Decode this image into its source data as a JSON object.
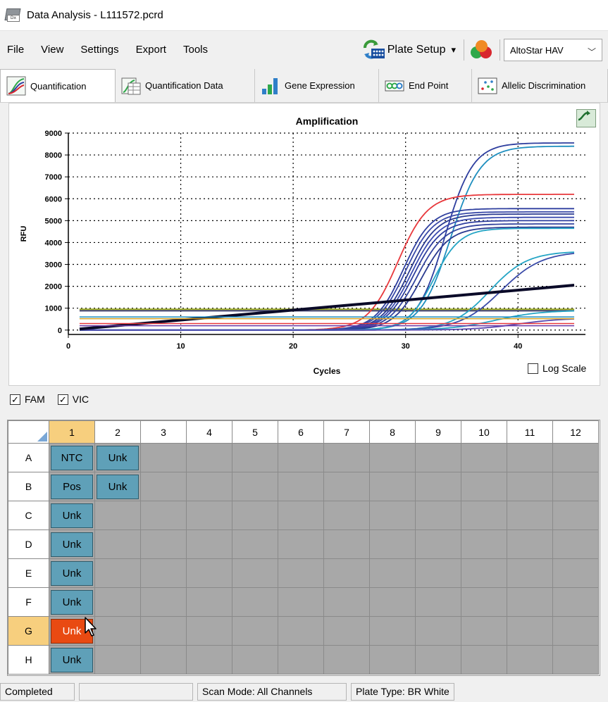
{
  "window": {
    "title": "Data Analysis - L111572.pcrd",
    "app_icon_badge": "Dx"
  },
  "menu": {
    "items": [
      "File",
      "View",
      "Settings",
      "Export",
      "Tools"
    ]
  },
  "toolbar": {
    "plate_setup_label": "Plate Setup",
    "plate_setup_arrow": "▾",
    "assay_select_value": "AltoStar HAV",
    "assay_select_chevron": "﹀"
  },
  "tabs": [
    {
      "label": "Quantification",
      "icon": "amplification-curve-icon",
      "active": true
    },
    {
      "label": "Quantification Data",
      "icon": "quantification-table-icon",
      "active": false
    },
    {
      "label": "Gene Expression",
      "icon": "bar-chart-icon",
      "active": false
    },
    {
      "label": "End Point",
      "icon": "end-point-icon",
      "active": false
    },
    {
      "label": "Allelic Discrimination",
      "icon": "scatter-plot-icon",
      "active": false
    }
  ],
  "chart_data": {
    "type": "line",
    "title": "Amplification",
    "xlabel": "Cycles",
    "ylabel": "RFU",
    "xlim": [
      0,
      46
    ],
    "ylim": [
      -200,
      9000
    ],
    "x_ticks": [
      0,
      10,
      20,
      30,
      40
    ],
    "y_ticks": [
      0,
      1000,
      2000,
      3000,
      4000,
      5000,
      6000,
      7000,
      8000,
      9000
    ],
    "grid": true,
    "log_scale": false,
    "threshold_lines": [
      {
        "value": 950,
        "color": "#9aa81e"
      },
      {
        "value": 880,
        "color": "#3b3b6b"
      }
    ],
    "series": [
      {
        "type": "sigmoid",
        "color": "#1f8fbf",
        "base": 0,
        "plateau": 8400,
        "midpoint": 34.0,
        "slope": 0.75
      },
      {
        "type": "sigmoid",
        "color": "#2f3f9f",
        "base": 0,
        "plateau": 8550,
        "midpoint": 33.5,
        "slope": 0.8
      },
      {
        "type": "sigmoid",
        "color": "#e8383c",
        "base": 0,
        "plateau": 6200,
        "midpoint": 29.3,
        "slope": 0.75
      },
      {
        "type": "sigmoid",
        "color": "#2f3f9f",
        "base": 0,
        "plateau": 5550,
        "midpoint": 29.8,
        "slope": 0.8
      },
      {
        "type": "sigmoid",
        "color": "#3a4aa8",
        "base": 0,
        "plateau": 5400,
        "midpoint": 30.0,
        "slope": 0.8
      },
      {
        "type": "sigmoid",
        "color": "#2a3a90",
        "base": 0,
        "plateau": 5300,
        "midpoint": 30.3,
        "slope": 0.8
      },
      {
        "type": "sigmoid",
        "color": "#3c4cb0",
        "base": 0,
        "plateau": 5150,
        "midpoint": 30.5,
        "slope": 0.8
      },
      {
        "type": "sigmoid",
        "color": "#2f3f9f",
        "base": 0,
        "plateau": 5000,
        "midpoint": 30.7,
        "slope": 0.8
      },
      {
        "type": "sigmoid",
        "color": "#34449e",
        "base": 0,
        "plateau": 4850,
        "midpoint": 31.0,
        "slope": 0.8
      },
      {
        "type": "sigmoid",
        "color": "#2a3a90",
        "base": 0,
        "plateau": 4700,
        "midpoint": 31.4,
        "slope": 0.8
      },
      {
        "type": "sigmoid",
        "color": "#25a5c5",
        "base": 0,
        "plateau": 4650,
        "midpoint": 32.5,
        "slope": 0.85
      },
      {
        "type": "sigmoid",
        "color": "#25a5c5",
        "base": 0,
        "plateau": 3600,
        "midpoint": 37.5,
        "slope": 0.6
      },
      {
        "type": "sigmoid",
        "color": "#3a4aa8",
        "base": 0,
        "plateau": 3600,
        "midpoint": 38.5,
        "slope": 0.55
      },
      {
        "type": "sigmoid",
        "color": "#25a5c5",
        "base": 0,
        "plateau": 900,
        "midpoint": 38.0,
        "slope": 0.5
      },
      {
        "type": "sigmoid",
        "color": "#5a4ab0",
        "base": 0,
        "plateau": 550,
        "midpoint": 40.0,
        "slope": 0.5
      },
      {
        "type": "linear",
        "color": "#0a0a28",
        "start": [
          1,
          50
        ],
        "end": [
          45,
          2050
        ],
        "width": 4
      },
      {
        "type": "linear",
        "color": "#e8383c",
        "start": [
          1,
          300
        ],
        "end": [
          45,
          300
        ],
        "width": 1.5
      },
      {
        "type": "linear",
        "color": "#d4a020",
        "start": [
          1,
          520
        ],
        "end": [
          45,
          520
        ],
        "width": 1.5
      },
      {
        "type": "linear",
        "color": "#1f8fbf",
        "start": [
          1,
          600
        ],
        "end": [
          45,
          600
        ],
        "width": 1.5
      },
      {
        "type": "linear",
        "color": "#6a3aa8",
        "start": [
          1,
          200
        ],
        "end": [
          45,
          200
        ],
        "width": 1.5
      }
    ]
  },
  "chart": {
    "log_scale_label": "Log Scale",
    "corner_button_icon": "display-options-icon"
  },
  "channels": [
    {
      "label": "FAM",
      "checked": true
    },
    {
      "label": "VIC",
      "checked": true
    }
  ],
  "plate": {
    "columns": [
      "1",
      "2",
      "3",
      "4",
      "5",
      "6",
      "7",
      "8",
      "9",
      "10",
      "11",
      "12"
    ],
    "rows": [
      {
        "label": "A",
        "wells": [
          "NTC",
          "Unk"
        ]
      },
      {
        "label": "B",
        "wells": [
          "Pos",
          "Unk"
        ]
      },
      {
        "label": "C",
        "wells": [
          "Unk"
        ]
      },
      {
        "label": "D",
        "wells": [
          "Unk"
        ]
      },
      {
        "label": "E",
        "wells": [
          "Unk"
        ]
      },
      {
        "label": "F",
        "wells": [
          "Unk"
        ]
      },
      {
        "label": "G",
        "wells": [
          "Unk"
        ],
        "selected": true
      },
      {
        "label": "H",
        "wells": [
          "Unk"
        ]
      }
    ],
    "selected_column": "1",
    "selected_row": "G"
  },
  "status": {
    "state": "Completed",
    "progress": "",
    "scan_mode": "Scan Mode: All Channels",
    "plate_type": "Plate Type: BR White"
  },
  "colors": {
    "well_fill": "#5fa0b8",
    "well_selected": "#e94a12",
    "header_selected": "#f7cf7e",
    "empty_well": "#a8a8a8"
  }
}
